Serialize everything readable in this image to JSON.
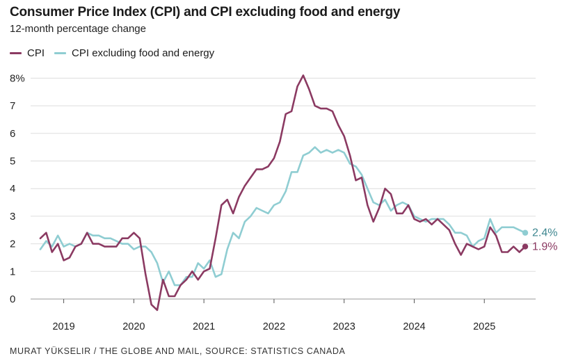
{
  "header": {
    "title": "Consumer Price Index (CPI) and CPI excluding food and energy",
    "subtitle": "12-month percentage change"
  },
  "legend": [
    {
      "label": "CPI",
      "color": "#8b3a62"
    },
    {
      "label": "CPI excluding food and energy",
      "color": "#8fcdd2"
    }
  ],
  "footer": {
    "credit": "MURAT YÜKSELIR / THE GLOBE AND MAIL, SOURCE: STATISTICS CANADA"
  },
  "chart_data": {
    "type": "line",
    "title": "Consumer Price Index (CPI) and CPI excluding food and energy",
    "subtitle": "12-month percentage change",
    "xlabel": "",
    "ylabel": "",
    "ylim": [
      0,
      8
    ],
    "yticks": [
      "0",
      "1",
      "2",
      "3",
      "4",
      "5",
      "6",
      "7",
      "8%"
    ],
    "xticks": [
      "2019",
      "2020",
      "2021",
      "2022",
      "2023",
      "2024",
      "2025"
    ],
    "x_start": "2018-09",
    "x_end": "2025-08",
    "grid": true,
    "legend_position": "top-left",
    "series": [
      {
        "name": "CPI",
        "color": "#8b3a62",
        "end_label": "1.9%",
        "values": [
          2.2,
          2.4,
          1.7,
          2.0,
          1.4,
          1.5,
          1.9,
          2.0,
          2.4,
          2.0,
          2.0,
          1.9,
          1.9,
          1.9,
          2.2,
          2.2,
          2.4,
          2.2,
          0.9,
          -0.2,
          -0.4,
          0.7,
          0.1,
          0.1,
          0.5,
          0.7,
          1.0,
          0.7,
          1.0,
          1.1,
          2.2,
          3.4,
          3.6,
          3.1,
          3.7,
          4.1,
          4.4,
          4.7,
          4.7,
          4.8,
          5.1,
          5.7,
          6.7,
          6.8,
          7.7,
          8.1,
          7.6,
          7.0,
          6.9,
          6.9,
          6.8,
          6.3,
          5.9,
          5.2,
          4.3,
          4.4,
          3.4,
          2.8,
          3.3,
          4.0,
          3.8,
          3.1,
          3.1,
          3.4,
          2.9,
          2.8,
          2.9,
          2.7,
          2.9,
          2.7,
          2.5,
          2.0,
          1.6,
          2.0,
          1.9,
          1.8,
          1.9,
          2.6,
          2.3,
          1.7,
          1.7,
          1.9,
          1.7,
          1.9
        ],
        "color_end": "#8b3a62"
      },
      {
        "name": "CPI excluding food and energy",
        "color": "#8fcdd2",
        "end_label": "2.4%",
        "values": [
          1.8,
          2.1,
          1.9,
          2.3,
          1.9,
          2.0,
          1.9,
          2.0,
          2.4,
          2.3,
          2.3,
          2.2,
          2.2,
          2.1,
          2.0,
          2.0,
          1.8,
          1.9,
          1.9,
          1.7,
          1.3,
          0.6,
          1.0,
          0.5,
          0.5,
          0.8,
          0.8,
          1.3,
          1.1,
          1.4,
          0.8,
          0.9,
          1.8,
          2.4,
          2.2,
          2.8,
          3.0,
          3.3,
          3.2,
          3.1,
          3.4,
          3.5,
          3.9,
          4.6,
          4.6,
          5.2,
          5.3,
          5.5,
          5.3,
          5.4,
          5.3,
          5.4,
          5.3,
          4.9,
          4.8,
          4.5,
          4.0,
          3.5,
          3.4,
          3.6,
          3.2,
          3.4,
          3.5,
          3.4,
          3.0,
          2.9,
          2.8,
          2.9,
          2.9,
          2.9,
          2.7,
          2.4,
          2.4,
          2.3,
          1.9,
          2.1,
          2.2,
          2.9,
          2.4,
          2.6,
          2.6,
          2.6,
          2.5,
          2.4
        ]
      }
    ]
  }
}
